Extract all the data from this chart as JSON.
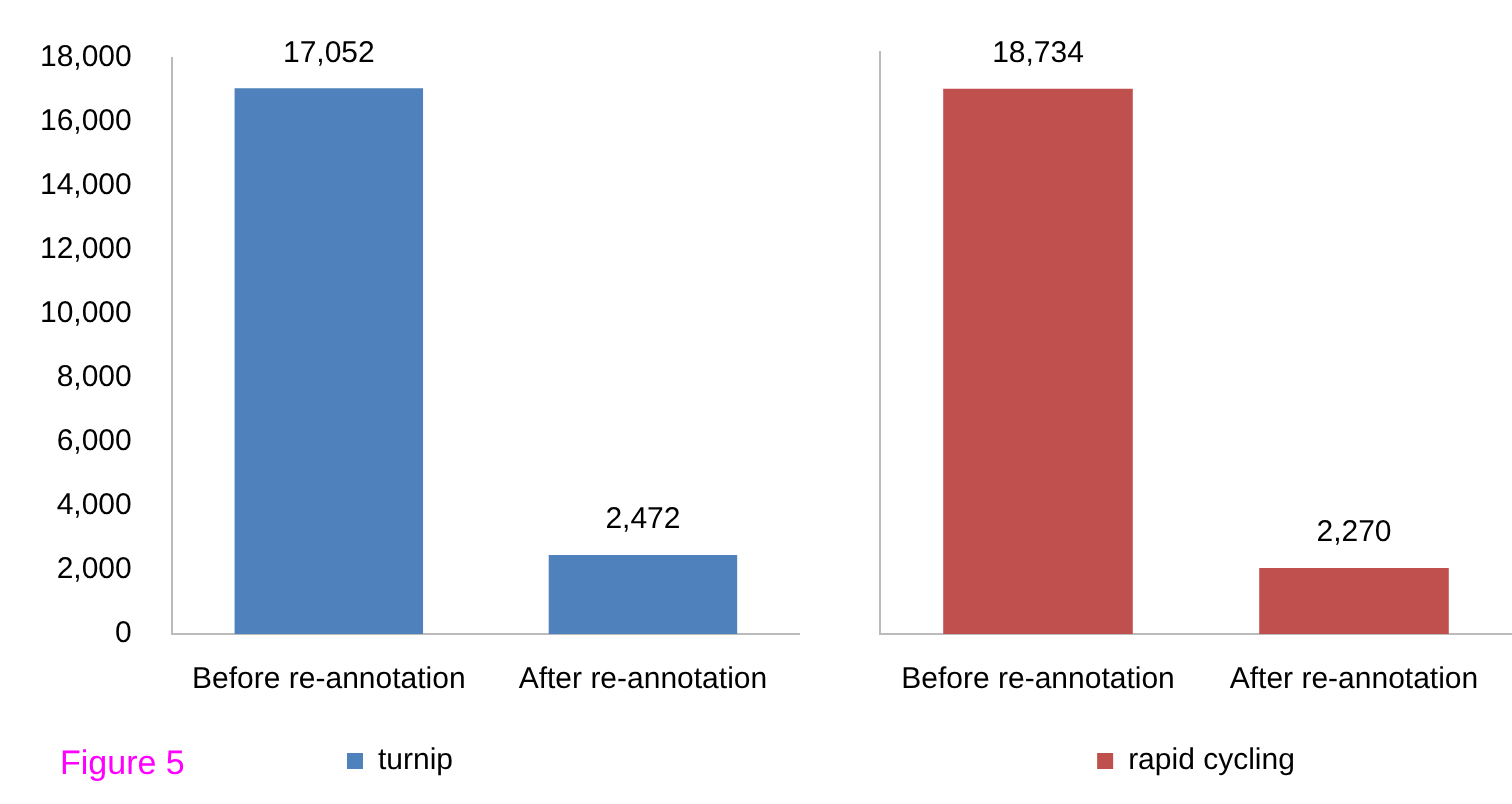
{
  "chart_data": [
    {
      "type": "bar",
      "categories": [
        "Before re-annotation",
        "After re-annotation"
      ],
      "series": [
        {
          "name": "turnip",
          "color": "#4f81bd",
          "values": [
            17052,
            2472
          ],
          "value_labels": [
            "17,052",
            "2,472"
          ]
        }
      ],
      "ylim": [
        0,
        18000
      ],
      "yticks": [
        0,
        {
          "value": 2000,
          "label": "2,000"
        },
        {
          "value": 4000,
          "label": "4,000"
        },
        {
          "value": 6000,
          "label": "6,000"
        },
        {
          "value": 8000,
          "label": "8,000"
        },
        {
          "value": 10000,
          "label": "10,000"
        },
        {
          "value": 12000,
          "label": "12,000"
        },
        {
          "value": 14000,
          "label": "14,000"
        },
        {
          "value": 16000,
          "label": "16,000"
        },
        {
          "value": 18000,
          "label": "18,000"
        }
      ],
      "legend": "bottom",
      "annotations": [
        "Figure 5"
      ]
    },
    {
      "type": "bar",
      "categories": [
        "Before re-annotation",
        "After re-annotation"
      ],
      "series": [
        {
          "name": "rapid cycling",
          "color": "#c0504d",
          "values": [
            18734,
            2270
          ],
          "value_labels": [
            "18,734",
            "2,270"
          ]
        }
      ],
      "tick_labels": "x",
      "legend": "bottom"
    }
  ]
}
